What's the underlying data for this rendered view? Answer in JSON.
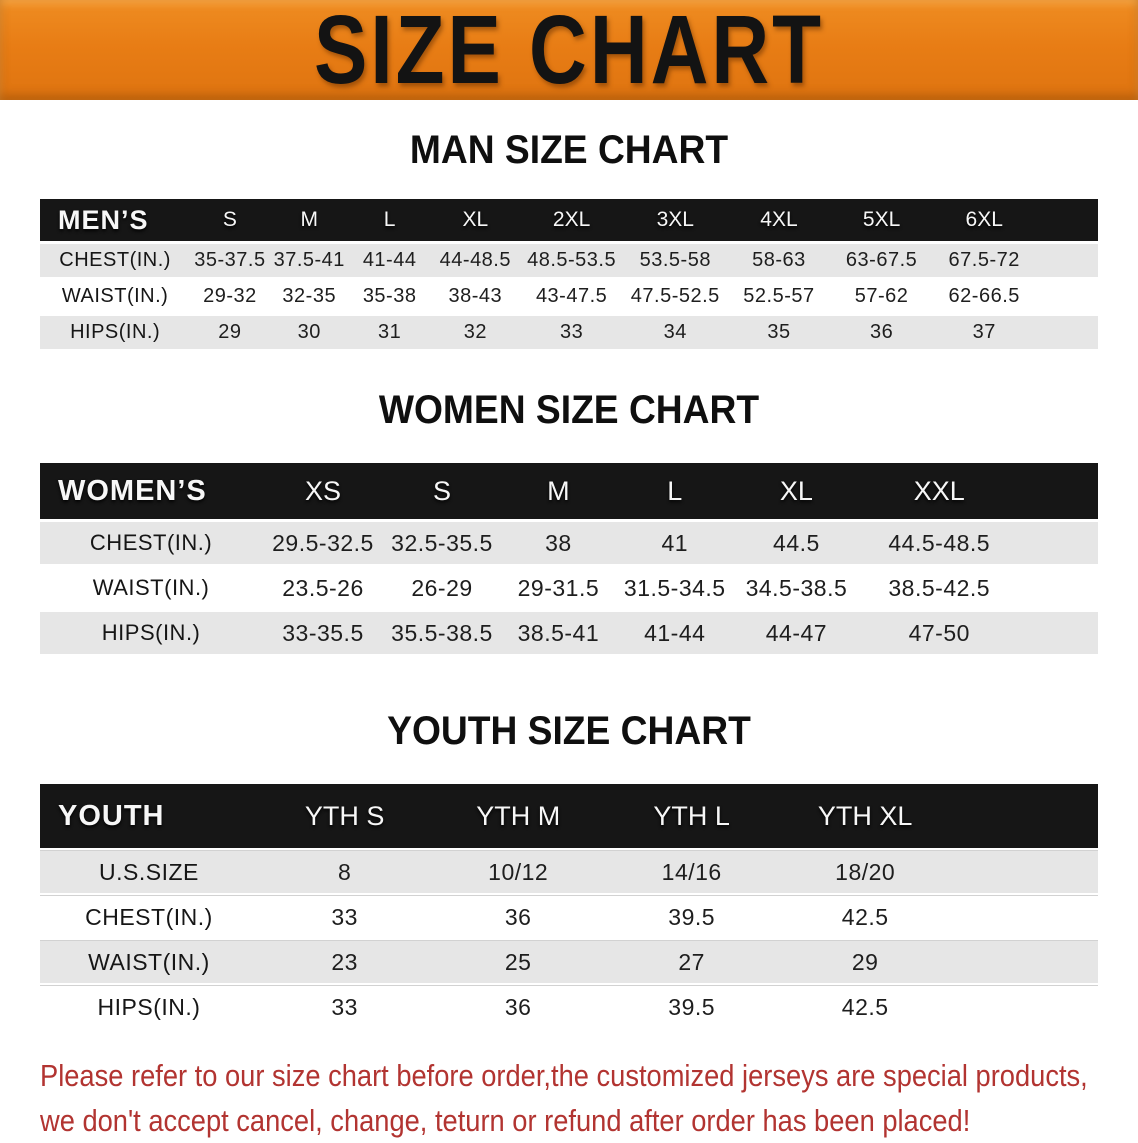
{
  "banner": {
    "title": "SIZE CHART"
  },
  "colors": {
    "banner_orange": "#e87d15",
    "table_header_black": "#161616",
    "row_stripe_gray": "#e6e6e6",
    "note_red": "#b23431"
  },
  "tables": [
    {
      "id": "men",
      "heading": "MAN SIZE CHART",
      "label": "MEN’S",
      "sizes": [
        "S",
        "M",
        "L",
        "XL",
        "2XL",
        "3XL",
        "4XL",
        "5XL",
        "6XL"
      ],
      "rows": [
        {
          "label": "CHEST(IN.)",
          "values": [
            "35-37.5",
            "37.5-41",
            "41-44",
            "44-48.5",
            "48.5-53.5",
            "53.5-58",
            "58-63",
            "63-67.5",
            "67.5-72"
          ]
        },
        {
          "label": "WAIST(IN.)",
          "values": [
            "29-32",
            "32-35",
            "35-38",
            "38-43",
            "43-47.5",
            "47.5-52.5",
            "52.5-57",
            "57-62",
            "62-66.5"
          ]
        },
        {
          "label": "HIPS(IN.)",
          "values": [
            "29",
            "30",
            "31",
            "32",
            "33",
            "34",
            "35",
            "36",
            "37"
          ]
        }
      ]
    },
    {
      "id": "women",
      "heading": "WOMEN SIZE CHART",
      "label": "WOMEN’S",
      "sizes": [
        "XS",
        "S",
        "M",
        "L",
        "XL",
        "XXL"
      ],
      "rows": [
        {
          "label": "CHEST(IN.)",
          "values": [
            "29.5-32.5",
            "32.5-35.5",
            "38",
            "41",
            "44.5",
            "44.5-48.5"
          ]
        },
        {
          "label": "WAIST(IN.)",
          "values": [
            "23.5-26",
            "26-29",
            "29-31.5",
            "31.5-34.5",
            "34.5-38.5",
            "38.5-42.5"
          ]
        },
        {
          "label": "HIPS(IN.)",
          "values": [
            "33-35.5",
            "35.5-38.5",
            "38.5-41",
            "41-44",
            "44-47",
            "47-50"
          ]
        }
      ]
    },
    {
      "id": "youth",
      "heading": "YOUTH SIZE CHART",
      "label": "YOUTH",
      "sizes": [
        "YTH S",
        "YTH M",
        "YTH L",
        "YTH XL"
      ],
      "rows": [
        {
          "label": "U.S.SIZE",
          "values": [
            "8",
            "10/12",
            "14/16",
            "18/20"
          ]
        },
        {
          "label": "CHEST(IN.)",
          "values": [
            "33",
            "36",
            "39.5",
            "42.5"
          ]
        },
        {
          "label": "WAIST(IN.)",
          "values": [
            "23",
            "25",
            "27",
            "29"
          ]
        },
        {
          "label": "HIPS(IN.)",
          "values": [
            "33",
            "36",
            "39.5",
            "42.5"
          ]
        }
      ]
    }
  ],
  "footer": {
    "line1": "Please refer to our size chart before order,the customized jerseys are special products,",
    "line2": "we don't accept cancel, change, teturn or refund after order has been placed!"
  }
}
